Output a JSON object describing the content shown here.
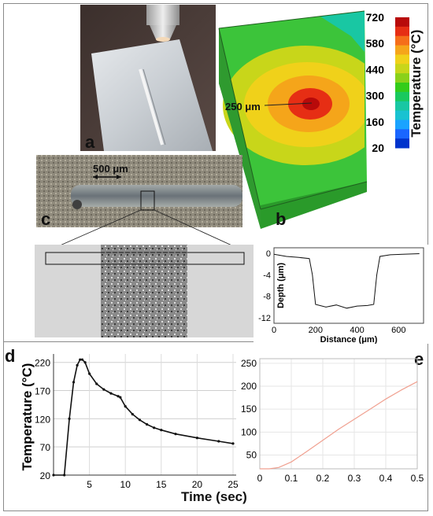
{
  "panels": {
    "a": {
      "label": "a"
    },
    "b": {
      "label": "b",
      "scale_label": "250 μm",
      "colorbar": {
        "title": "Temperature",
        "unit": "(°C)",
        "ticks": [
          "720",
          "580",
          "440",
          "300",
          "160",
          "20"
        ],
        "colors": [
          "#0033cc",
          "#1a66ff",
          "#1aa3ff",
          "#19c2d1",
          "#19c7a3",
          "#19c95e",
          "#33cc1a",
          "#8ad11a",
          "#c8d61a",
          "#f0d11a",
          "#f5a51a",
          "#f56e1a",
          "#e62e14",
          "#b80a0a"
        ]
      }
    },
    "c": {
      "label": "c",
      "scale_label": "500 μm"
    },
    "profile": {
      "xlabel": "Distance (μm)",
      "ylabel": "Depth (μm)",
      "xticks": [
        "0",
        "200",
        "400",
        "600"
      ],
      "yticks": [
        "0",
        "-4",
        "-8",
        "-12"
      ]
    },
    "d": {
      "label": "d",
      "ylabel": "Temperature (°C)",
      "yticks": [
        "220",
        "170",
        "120",
        "70",
        "20"
      ],
      "xticks": [
        "5",
        "10",
        "15",
        "20",
        "25"
      ]
    },
    "e": {
      "label": "e",
      "yticks": [
        "250",
        "200",
        "150",
        "100",
        "50"
      ],
      "xticks": [
        "0",
        "0.1",
        "0.2",
        "0.3",
        "0.4",
        "0.5"
      ]
    },
    "shared_xlabel": "Time (sec)"
  },
  "chart_data": [
    {
      "type": "line",
      "panel": "profile",
      "xlabel": "Distance (μm)",
      "ylabel": "Depth (μm)",
      "xlim": [
        0,
        720
      ],
      "ylim": [
        -13,
        1
      ],
      "x": [
        0,
        60,
        120,
        170,
        185,
        200,
        250,
        300,
        350,
        400,
        450,
        480,
        495,
        510,
        560,
        620,
        700
      ],
      "y": [
        -0.2,
        -0.6,
        -0.8,
        -1.0,
        -4.0,
        -9.5,
        -10.0,
        -9.6,
        -10.2,
        -9.8,
        -9.7,
        -9.5,
        -4.0,
        -0.6,
        -0.3,
        -0.2,
        -0.1
      ]
    },
    {
      "type": "line",
      "panel": "d",
      "xlabel": "Time (sec)",
      "ylabel": "Temperature (°C)",
      "xlim": [
        0,
        25
      ],
      "ylim": [
        20,
        235
      ],
      "x": [
        0,
        1.5,
        2.2,
        2.8,
        3.3,
        3.7,
        4.0,
        4.4,
        5.0,
        6.0,
        7.0,
        8.0,
        9.0,
        9.3,
        10.0,
        11.0,
        12.0,
        13.0,
        14.0,
        15.0,
        17.0,
        20.0,
        23.0,
        25.0
      ],
      "y": [
        20,
        20,
        120,
        185,
        215,
        225,
        225,
        220,
        200,
        182,
        172,
        165,
        160,
        158,
        142,
        128,
        118,
        110,
        104,
        100,
        93,
        86,
        80,
        76
      ]
    },
    {
      "type": "line",
      "panel": "e",
      "xlabel": "Time (sec)",
      "ylabel": "",
      "xlim": [
        0,
        0.5
      ],
      "ylim": [
        20,
        260
      ],
      "x": [
        0,
        0.03,
        0.06,
        0.1,
        0.15,
        0.2,
        0.25,
        0.3,
        0.35,
        0.4,
        0.45,
        0.5
      ],
      "y": [
        20,
        20,
        23,
        35,
        58,
        82,
        106,
        128,
        150,
        172,
        192,
        210
      ]
    }
  ]
}
